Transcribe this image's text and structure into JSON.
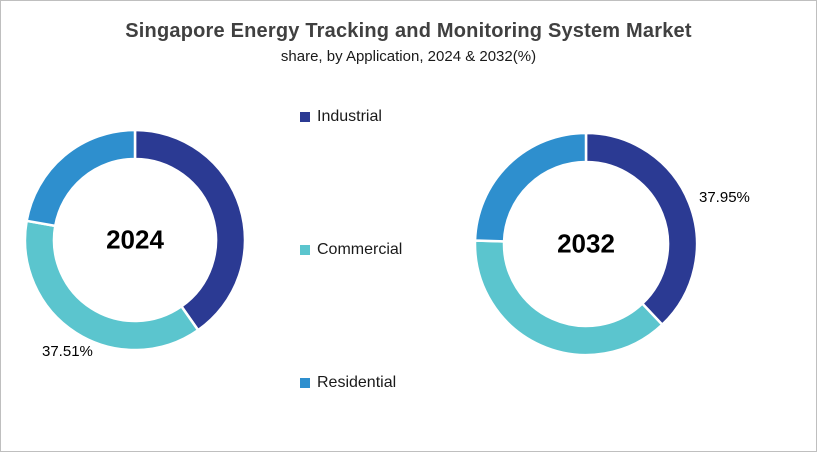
{
  "chart_data": {
    "type": "pie",
    "subtype": "donut",
    "title": "Singapore Energy Tracking and Monitoring System Market",
    "subtitle": "share, by Application, 2024 & 2032(%)",
    "legend_position": "center column between donuts",
    "categories": [
      "Industrial",
      "Commercial",
      "Residential"
    ],
    "colors": [
      "#2b3a93",
      "#5bc5ce",
      "#2e8fce"
    ],
    "hole_ratio": 0.74,
    "start_angle_deg": 0,
    "direction": "clockwise",
    "charts": [
      {
        "label": "2024",
        "values": [
          40.28,
          37.51,
          22.21
        ],
        "data_label": {
          "text": "37.51%",
          "series": "Commercial",
          "position": "bottom-left"
        }
      },
      {
        "label": "2032",
        "values": [
          37.95,
          37.55,
          24.5
        ],
        "data_label": {
          "text": "37.95%",
          "series": "Industrial",
          "position": "right"
        }
      }
    ]
  }
}
